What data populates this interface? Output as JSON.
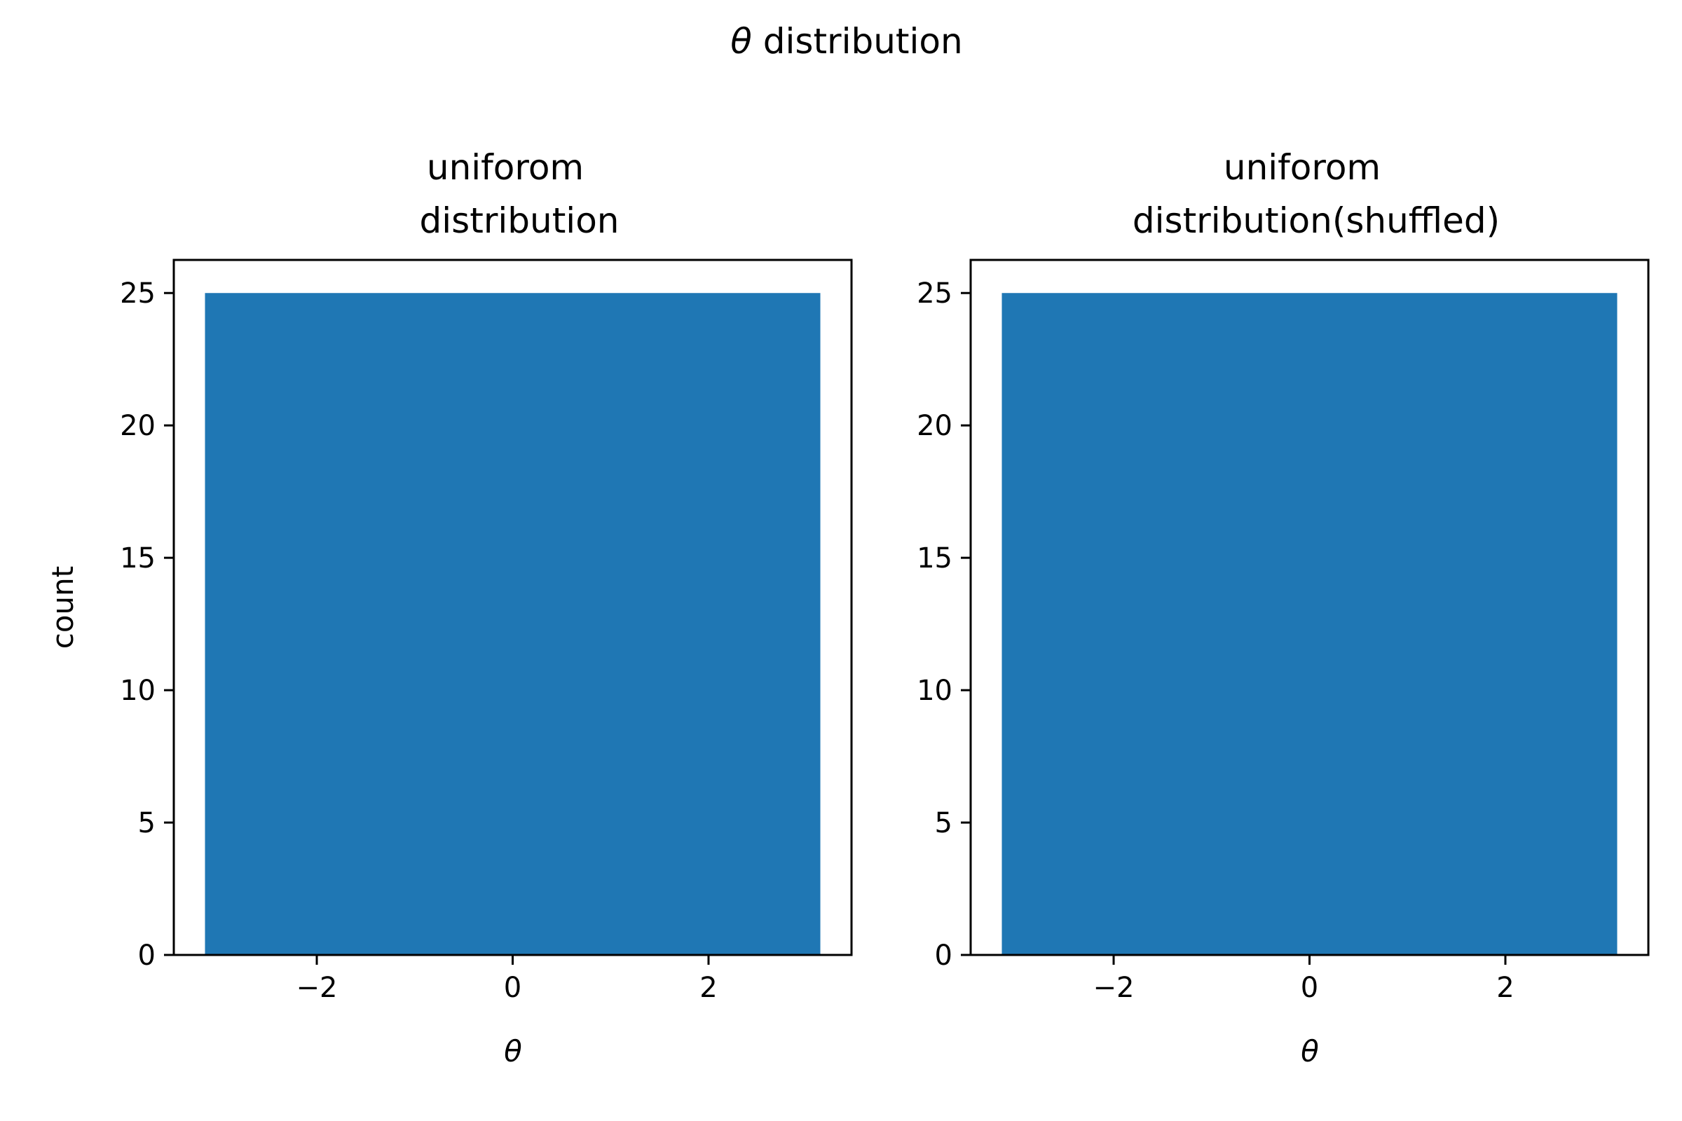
{
  "figure": {
    "suptitle_symbol": "θ",
    "suptitle_text": " distribution"
  },
  "chart_data": [
    {
      "type": "bar",
      "title_line1": "uniforom",
      "title_line2": "distribution",
      "xlabel": "θ",
      "ylabel": "count",
      "bars": [
        {
          "x_start": -3.1416,
          "x_end": 3.1416,
          "value": 25
        }
      ],
      "xlim": [
        -3.46,
        3.46
      ],
      "ylim": [
        0,
        26.25
      ],
      "xticks": [
        {
          "value": -2,
          "label": "−2"
        },
        {
          "value": 0,
          "label": "0"
        },
        {
          "value": 2,
          "label": "2"
        }
      ],
      "yticks": [
        {
          "value": 0,
          "label": "0"
        },
        {
          "value": 5,
          "label": "5"
        },
        {
          "value": 10,
          "label": "10"
        },
        {
          "value": 15,
          "label": "15"
        },
        {
          "value": 20,
          "label": "20"
        },
        {
          "value": 25,
          "label": "25"
        }
      ],
      "bar_color": "#1f77b4",
      "grid": false
    },
    {
      "type": "bar",
      "title_line1": "uniforom",
      "title_line2": "distribution(shuffled)",
      "xlabel": "θ",
      "ylabel": "",
      "bars": [
        {
          "x_start": -3.1416,
          "x_end": 3.1416,
          "value": 25
        }
      ],
      "xlim": [
        -3.46,
        3.46
      ],
      "ylim": [
        0,
        26.25
      ],
      "xticks": [
        {
          "value": -2,
          "label": "−2"
        },
        {
          "value": 0,
          "label": "0"
        },
        {
          "value": 2,
          "label": "2"
        }
      ],
      "yticks": [
        {
          "value": 0,
          "label": "0"
        },
        {
          "value": 5,
          "label": "5"
        },
        {
          "value": 10,
          "label": "10"
        },
        {
          "value": 15,
          "label": "15"
        },
        {
          "value": 20,
          "label": "20"
        },
        {
          "value": 25,
          "label": "25"
        }
      ],
      "bar_color": "#1f77b4",
      "grid": false
    }
  ]
}
